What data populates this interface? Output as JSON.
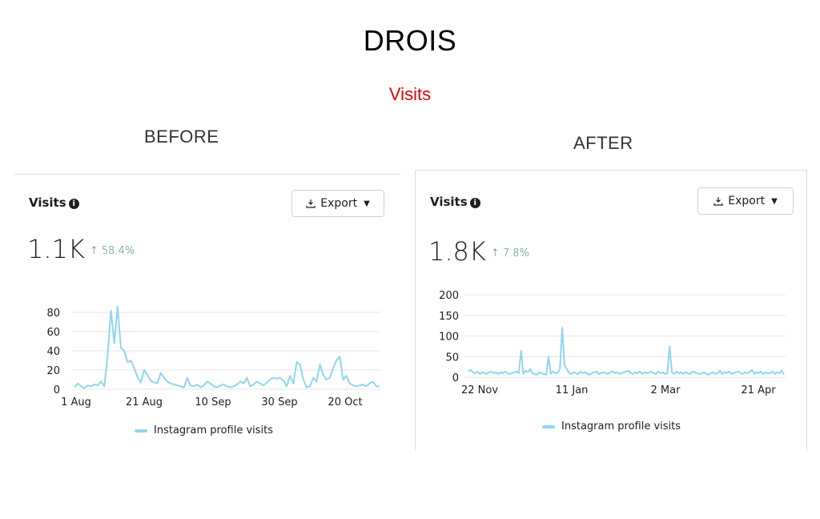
{
  "header": {
    "title": "DROIS",
    "subtitle": "Visits"
  },
  "colors": {
    "line": "#8fd6ef",
    "grid": "#e4e6eb",
    "accent_red": "#e00000",
    "delta_green": "#2e7d6b"
  },
  "panels": [
    {
      "side_label": "BEFORE",
      "heading": "Visits",
      "export_label": "Export",
      "big_number": "1.1K",
      "delta": "↑ 58.4%",
      "legend": "Instagram profile visits"
    },
    {
      "side_label": "AFTER",
      "heading": "Visits",
      "export_label": "Export",
      "big_number": "1.8K",
      "delta": "↑ 7.8%",
      "legend": "Instagram profile visits"
    }
  ],
  "chart_data": [
    {
      "type": "line",
      "title": "Visits",
      "series": [
        {
          "name": "Instagram profile visits",
          "values": [
            2,
            6,
            3,
            1,
            4,
            3,
            5,
            4,
            8,
            3,
            35,
            82,
            48,
            86,
            43,
            40,
            28,
            30,
            22,
            13,
            7,
            20,
            15,
            9,
            7,
            6,
            17,
            12,
            8,
            6,
            5,
            4,
            3,
            2,
            12,
            4,
            3,
            5,
            2,
            4,
            8,
            6,
            3,
            2,
            4,
            5,
            3,
            2,
            3,
            5,
            8,
            6,
            12,
            3,
            5,
            8,
            6,
            4,
            7,
            10,
            12,
            11,
            12,
            9,
            3,
            14,
            6,
            28,
            26,
            10,
            2,
            3,
            12,
            8,
            26,
            15,
            10,
            12,
            22,
            30,
            34,
            10,
            14,
            6,
            4,
            3,
            4,
            5,
            3,
            6,
            8,
            3,
            3
          ]
        }
      ],
      "x_tick_labels": [
        "1 Aug",
        "21 Aug",
        "10 Sep",
        "30 Sep",
        "20 Oct"
      ],
      "y_ticks": [
        0,
        20,
        40,
        60,
        80
      ],
      "ylim": [
        0,
        90
      ],
      "grid": true,
      "legend": "bottom"
    },
    {
      "type": "line",
      "title": "Visits",
      "series": [
        {
          "name": "Instagram profile visits",
          "values": [
            14,
            18,
            12,
            10,
            14,
            8,
            12,
            10,
            8,
            12,
            14,
            10,
            12,
            8,
            12,
            10,
            14,
            10,
            8,
            10,
            12,
            14,
            10,
            65,
            8,
            16,
            12,
            20,
            10,
            8,
            6,
            12,
            10,
            8,
            6,
            50,
            8,
            14,
            10,
            10,
            20,
            120,
            30,
            20,
            10,
            8,
            12,
            10,
            8,
            14,
            10,
            12,
            8,
            6,
            10,
            12,
            14,
            8,
            10,
            12,
            10,
            8,
            12,
            14,
            10,
            12,
            8,
            10,
            12,
            14,
            16,
            10,
            8,
            12,
            10,
            14,
            8,
            12,
            10,
            12,
            14,
            10,
            8,
            14,
            10,
            12,
            8,
            10,
            75,
            12,
            8,
            14,
            10,
            12,
            8,
            12,
            10,
            8,
            14,
            12,
            10,
            8,
            10,
            12,
            8,
            6,
            10,
            12,
            8,
            10,
            16,
            8,
            12,
            10,
            14,
            8,
            10,
            12,
            14,
            10,
            8,
            12,
            10,
            12,
            18,
            8,
            12,
            10,
            14,
            8,
            12,
            10,
            10,
            14,
            8,
            12,
            10,
            16,
            6
          ]
        }
      ],
      "x_tick_labels": [
        "22 Nov",
        "11 Jan",
        "2 Mar",
        "21 Apr"
      ],
      "y_ticks": [
        0,
        50,
        100,
        150,
        200
      ],
      "ylim": [
        0,
        210
      ],
      "grid": true,
      "legend": "bottom"
    }
  ]
}
